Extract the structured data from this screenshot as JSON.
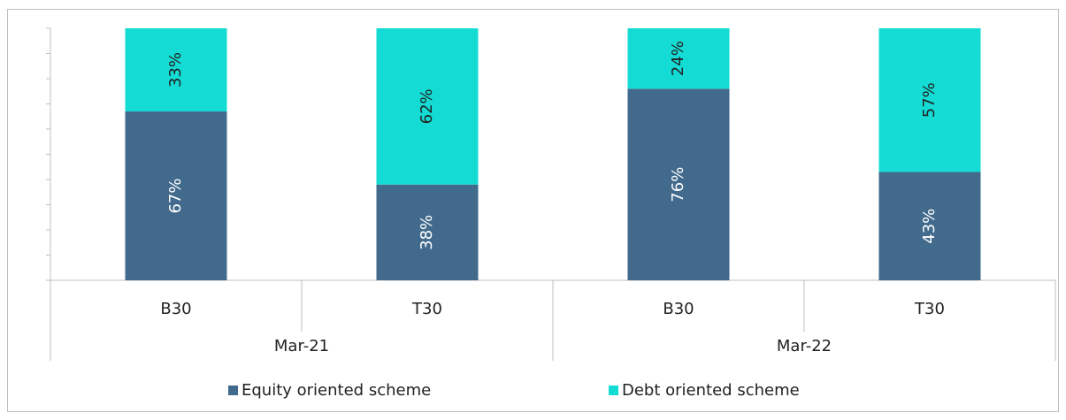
{
  "chart_data": {
    "type": "stacked_bar",
    "categories": [
      "B30",
      "T30",
      "B30",
      "T30"
    ],
    "groups": [
      "Mar-21",
      "Mar-22"
    ],
    "series": [
      {
        "name": "Equity oriented scheme",
        "color": "#426a8c",
        "values": [
          67,
          38,
          76,
          43
        ],
        "value_labels": [
          "67%",
          "38%",
          "76%",
          "43%"
        ]
      },
      {
        "name": "Debt oriented scheme",
        "color": "#14dcd4",
        "values": [
          33,
          62,
          24,
          57
        ],
        "value_labels": [
          "33%",
          "62%",
          "24%",
          "57%"
        ]
      }
    ],
    "ylim": [
      0,
      100
    ],
    "yticks": [
      0,
      10,
      20,
      30,
      40,
      50,
      60,
      70,
      80,
      90,
      100
    ],
    "legend": "bottom"
  }
}
